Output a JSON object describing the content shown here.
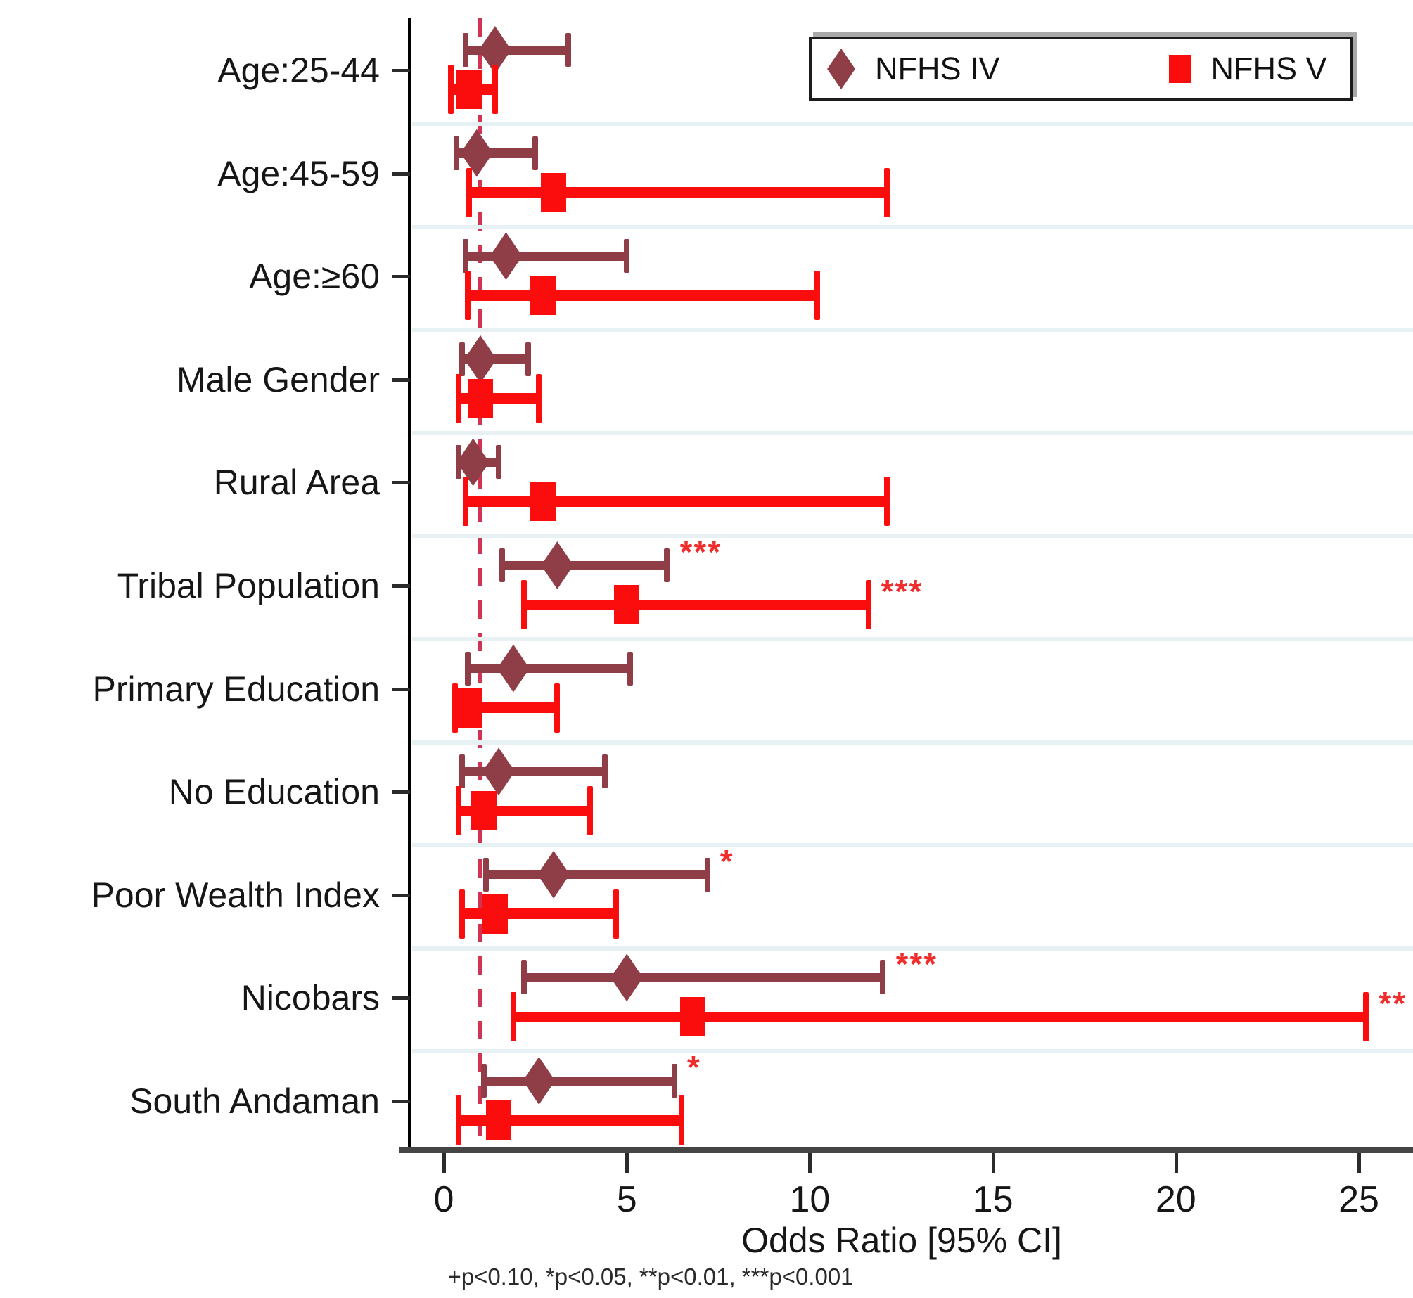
{
  "chart_data": {
    "type": "scatter",
    "subtype": "forest-plot",
    "title": "",
    "xlabel": "Odds Ratio [95% CI]",
    "footnote": "+p<0.10, *p<0.05, **p<0.01, ***p<0.001",
    "x_ticks": [
      0,
      5,
      10,
      15,
      20,
      25
    ],
    "xlim": [
      0,
      26.5
    ],
    "reference_line_x": 1,
    "grid": "off",
    "legend_position": "top-right",
    "categories": [
      "Age:25-44",
      "Age:45-59",
      "Age:≥60",
      "Male Gender",
      "Rural Area",
      "Tribal Population",
      "Primary Education",
      "No Education",
      "Poor Wealth Index",
      "Nicobars",
      "South Andaman"
    ],
    "series": [
      {
        "name": "NFHS IV",
        "marker": "diamond",
        "color": "#8f3d47",
        "points": [
          {
            "or": 1.4,
            "lo": 0.6,
            "hi": 3.4,
            "sig": ""
          },
          {
            "or": 0.9,
            "lo": 0.35,
            "hi": 2.5,
            "sig": ""
          },
          {
            "or": 1.7,
            "lo": 0.6,
            "hi": 5.0,
            "sig": ""
          },
          {
            "or": 1.0,
            "lo": 0.5,
            "hi": 2.3,
            "sig": ""
          },
          {
            "or": 0.8,
            "lo": 0.4,
            "hi": 1.5,
            "sig": ""
          },
          {
            "or": 3.1,
            "lo": 1.6,
            "hi": 6.1,
            "sig": "***"
          },
          {
            "or": 1.9,
            "lo": 0.65,
            "hi": 5.1,
            "sig": ""
          },
          {
            "or": 1.5,
            "lo": 0.5,
            "hi": 4.4,
            "sig": ""
          },
          {
            "or": 3.0,
            "lo": 1.15,
            "hi": 7.2,
            "sig": "*"
          },
          {
            "or": 5.0,
            "lo": 2.2,
            "hi": 12.0,
            "sig": "***"
          },
          {
            "or": 2.6,
            "lo": 1.1,
            "hi": 6.3,
            "sig": "*"
          }
        ]
      },
      {
        "name": "NFHS V",
        "marker": "square",
        "color": "#fc0d0d",
        "points": [
          {
            "or": 0.7,
            "lo": 0.2,
            "hi": 1.4,
            "sig": ""
          },
          {
            "or": 3.0,
            "lo": 0.7,
            "hi": 12.1,
            "sig": ""
          },
          {
            "or": 2.7,
            "lo": 0.65,
            "hi": 10.2,
            "sig": ""
          },
          {
            "or": 1.0,
            "lo": 0.4,
            "hi": 2.6,
            "sig": ""
          },
          {
            "or": 2.7,
            "lo": 0.6,
            "hi": 12.1,
            "sig": ""
          },
          {
            "or": 5.0,
            "lo": 2.2,
            "hi": 11.6,
            "sig": "***"
          },
          {
            "or": 0.7,
            "lo": 0.3,
            "hi": 3.1,
            "sig": ""
          },
          {
            "or": 1.1,
            "lo": 0.4,
            "hi": 4.0,
            "sig": ""
          },
          {
            "or": 1.4,
            "lo": 0.5,
            "hi": 4.7,
            "sig": ""
          },
          {
            "or": 6.8,
            "lo": 1.9,
            "hi": 25.2,
            "sig": "**"
          },
          {
            "or": 1.5,
            "lo": 0.4,
            "hi": 6.5,
            "sig": ""
          }
        ]
      }
    ],
    "colors": {
      "nfhs_iv": "#8f3d47",
      "nfhs_v": "#fc0d0d",
      "reference_line": "#d23352",
      "significance_stars": "#ef2d2d",
      "band_separator": "#e7f0f2",
      "axis": "#454545"
    }
  },
  "legend": {
    "items": [
      {
        "label": "NFHS IV"
      },
      {
        "label": "NFHS V"
      }
    ]
  }
}
